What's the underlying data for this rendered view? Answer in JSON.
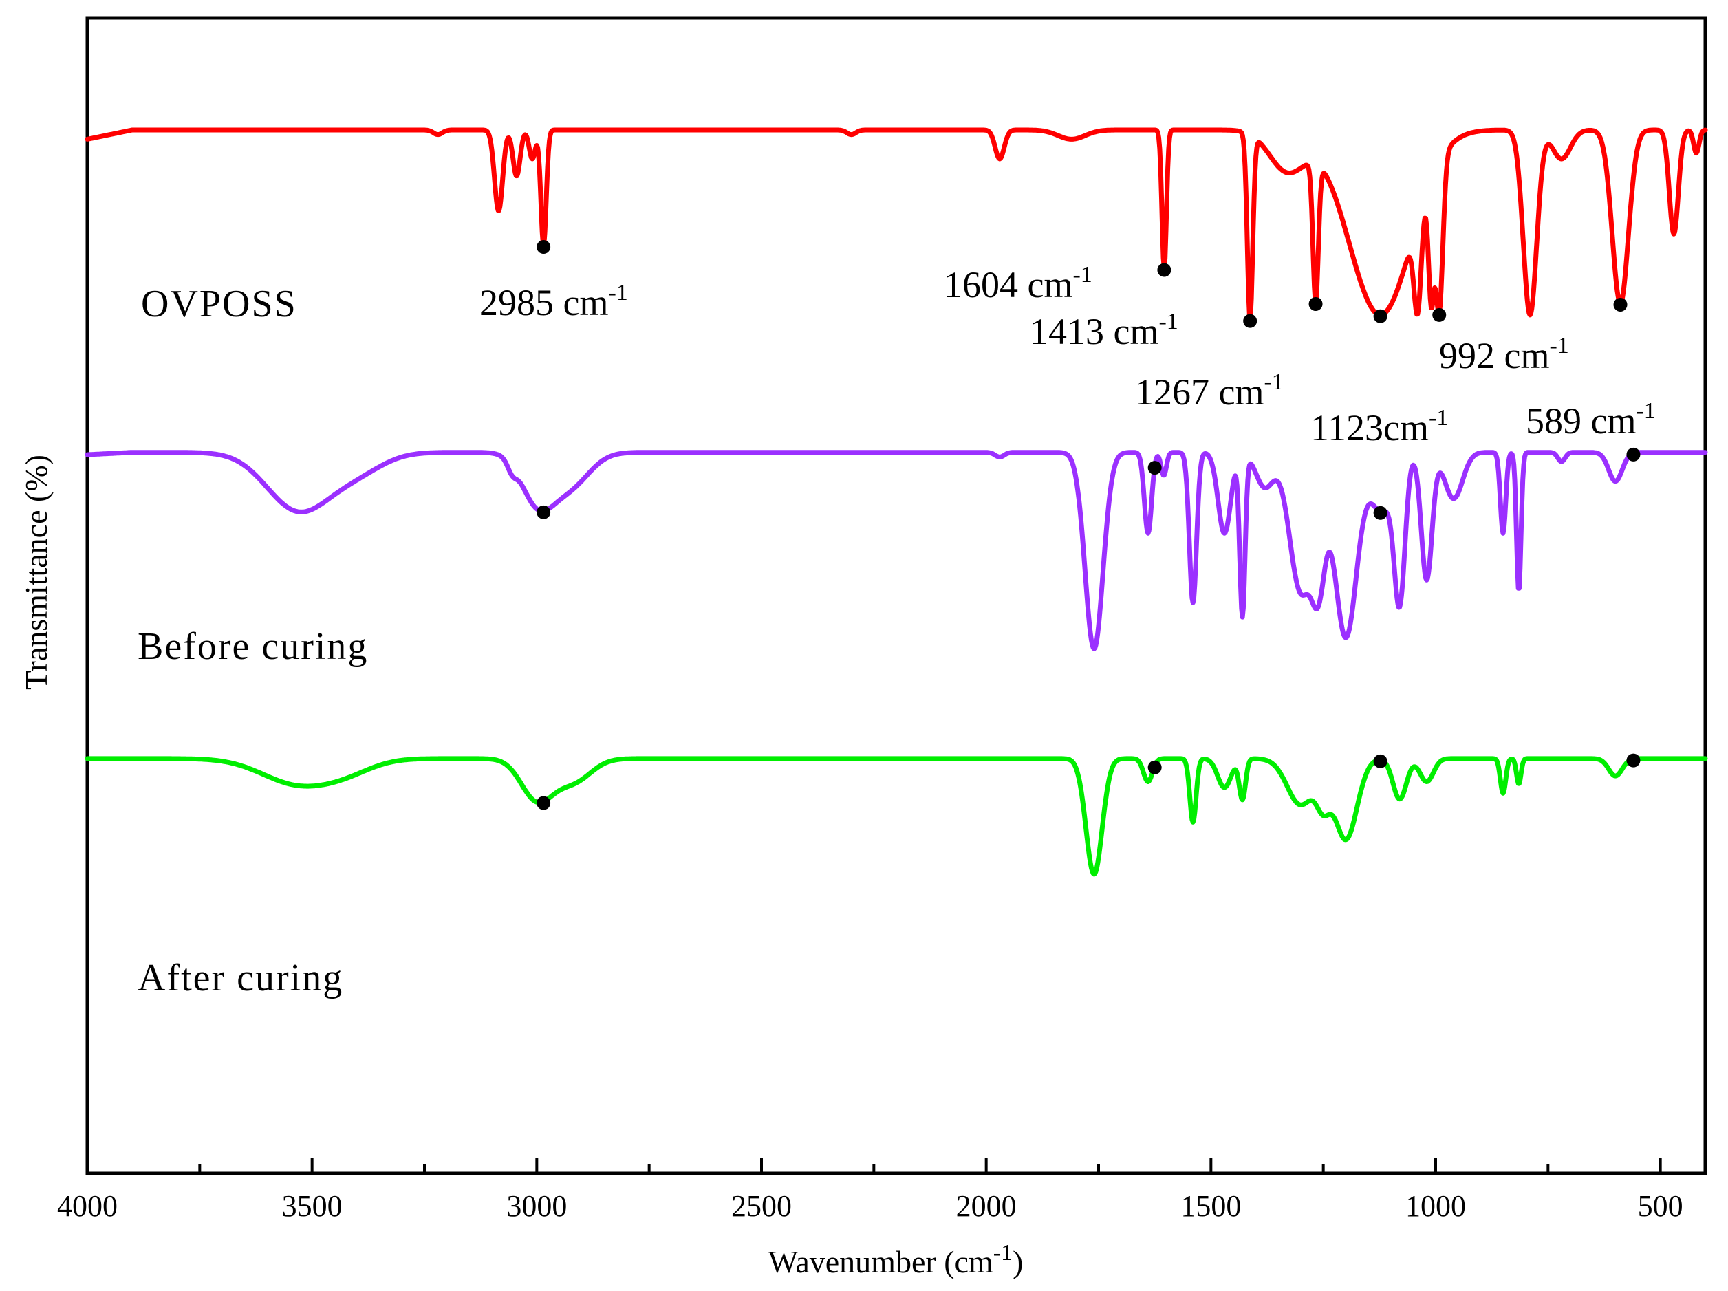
{
  "chart_data": {
    "type": "line",
    "title": "",
    "xlabel": "Wavenumber (cm",
    "xlabel_sup": "-1",
    "xlabel_end": ")",
    "ylabel": "Transmittance (%)",
    "xlim": [
      4000,
      400
    ],
    "x_ticks": [
      "4000",
      "3500",
      "3000",
      "2500",
      "2000",
      "1500",
      "1000",
      "500"
    ],
    "x_tick_values": [
      4000,
      3500,
      3000,
      2500,
      2000,
      1500,
      1000,
      500
    ],
    "y_ticks_shown": false,
    "marker_color": "#000000",
    "series": [
      {
        "name": "OVPOSS",
        "color": "#ff0000",
        "baseline": 0.903,
        "start_value": 0.895,
        "peaks": [
          [
            3085,
            0.07,
            9
          ],
          [
            3045,
            0.04,
            8
          ],
          [
            3010,
            0.025,
            7
          ],
          [
            2985,
            0.1,
            6
          ],
          [
            3220,
            0.004,
            10
          ],
          [
            2300,
            0.004,
            10
          ],
          [
            1970,
            0.025,
            10
          ],
          [
            1810,
            0.008,
            30
          ],
          [
            1604,
            0.12,
            5
          ],
          [
            1413,
            0.16,
            6
          ],
          [
            1267,
            0.12,
            6
          ],
          [
            1330,
            0.035,
            40
          ],
          [
            1123,
            0.16,
            70
          ],
          [
            1040,
            0.08,
            8
          ],
          [
            1010,
            0.1,
            6
          ],
          [
            992,
            0.13,
            8
          ],
          [
            790,
            0.16,
            15
          ],
          [
            720,
            0.025,
            20
          ],
          [
            589,
            0.15,
            18
          ],
          [
            470,
            0.09,
            10
          ],
          [
            420,
            0.02,
            6
          ]
        ],
        "markers": [
          2985,
          1604,
          1413,
          1267,
          1123,
          992,
          589
        ]
      },
      {
        "name": "Before curing",
        "color": "#9b30ff",
        "baseline": 0.624,
        "start_value": 0.622,
        "peaks": [
          [
            3530,
            0.05,
            70
          ],
          [
            3400,
            0.015,
            60
          ],
          [
            3055,
            0.008,
            10
          ],
          [
            3000,
            0.04,
            35
          ],
          [
            2930,
            0.03,
            45
          ],
          [
            1970,
            0.004,
            10
          ],
          [
            1760,
            0.17,
            20
          ],
          [
            1640,
            0.07,
            8
          ],
          [
            1605,
            0.02,
            6
          ],
          [
            1540,
            0.13,
            8
          ],
          [
            1470,
            0.07,
            14
          ],
          [
            1430,
            0.14,
            6
          ],
          [
            1380,
            0.03,
            20
          ],
          [
            1300,
            0.12,
            25
          ],
          [
            1260,
            0.09,
            15
          ],
          [
            1200,
            0.16,
            25
          ],
          [
            1120,
            0.05,
            25
          ],
          [
            1080,
            0.12,
            12
          ],
          [
            1020,
            0.11,
            12
          ],
          [
            960,
            0.04,
            20
          ],
          [
            850,
            0.07,
            6
          ],
          [
            815,
            0.12,
            5
          ],
          [
            720,
            0.008,
            8
          ],
          [
            600,
            0.025,
            15
          ]
        ],
        "markers": [
          2985,
          1625,
          1123,
          560
        ]
      },
      {
        "name": "After curing",
        "color": "#00ee00",
        "baseline": 0.359,
        "start_value": 0.359,
        "peaks": [
          [
            3530,
            0.022,
            80
          ],
          [
            3420,
            0.008,
            60
          ],
          [
            3000,
            0.035,
            35
          ],
          [
            2920,
            0.02,
            40
          ],
          [
            1760,
            0.1,
            18
          ],
          [
            1640,
            0.02,
            10
          ],
          [
            1540,
            0.055,
            7
          ],
          [
            1470,
            0.025,
            15
          ],
          [
            1430,
            0.035,
            7
          ],
          [
            1300,
            0.04,
            30
          ],
          [
            1250,
            0.03,
            15
          ],
          [
            1200,
            0.07,
            25
          ],
          [
            1080,
            0.035,
            15
          ],
          [
            1020,
            0.02,
            15
          ],
          [
            850,
            0.03,
            6
          ],
          [
            815,
            0.022,
            5
          ],
          [
            600,
            0.015,
            15
          ]
        ],
        "markers": [
          2985,
          1625,
          1123,
          560
        ]
      }
    ],
    "annotations": [
      {
        "text": "2985 cm",
        "sup": "-1"
      },
      {
        "text": "1604 cm",
        "sup": "-1"
      },
      {
        "text": "1413 cm",
        "sup": "-1"
      },
      {
        "text": "1267 cm",
        "sup": "-1"
      },
      {
        "text": "1123cm",
        "sup": "-1"
      },
      {
        "text": "992 cm",
        "sup": "-1"
      },
      {
        "text": "589 cm",
        "sup": "-1"
      }
    ]
  }
}
